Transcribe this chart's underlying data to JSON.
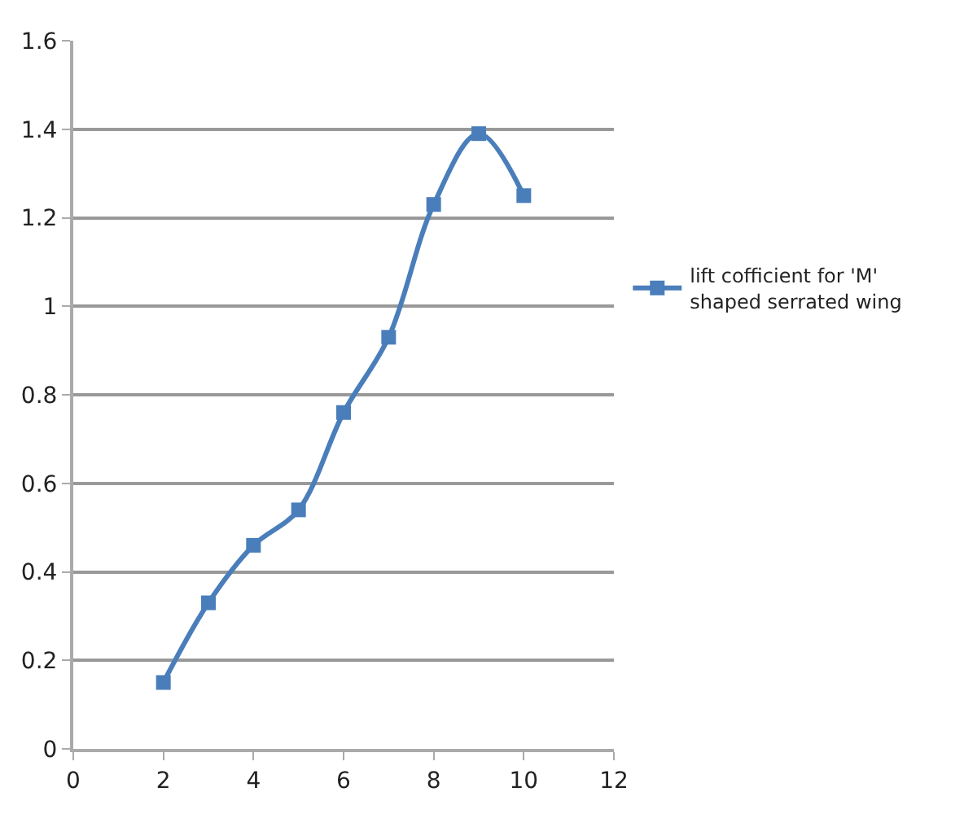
{
  "chart_data": {
    "type": "line",
    "x": [
      2,
      3,
      4,
      5,
      6,
      7,
      8,
      9,
      10
    ],
    "series": [
      {
        "name": "lift cofficient for 'M' shaped serrated wing",
        "color": "#4a7ebb",
        "values": [
          0.15,
          0.33,
          0.46,
          0.54,
          0.76,
          0.93,
          1.23,
          1.39,
          1.25
        ]
      }
    ],
    "xlim": [
      0,
      12
    ],
    "xticks": [
      0,
      2,
      4,
      6,
      8,
      10,
      12
    ],
    "ylim": [
      0,
      1.6
    ],
    "yticks": [
      0,
      0.2,
      0.4,
      0.6,
      0.8,
      1,
      1.2,
      1.4,
      1.6
    ],
    "grid": "y",
    "legend": "right",
    "marker": "square",
    "line_style": "solid"
  }
}
